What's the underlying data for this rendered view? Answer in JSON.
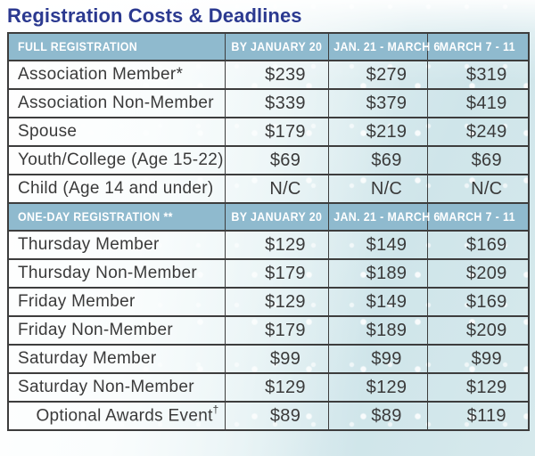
{
  "page": {
    "title": "Registration Costs & Deadlines"
  },
  "table": {
    "date_columns": [
      "BY JANUARY 20",
      "JAN. 21 - MARCH 6",
      "MARCH 7 - 11"
    ],
    "sections": [
      {
        "header": "FULL REGISTRATION",
        "rows": [
          {
            "label": "Association Member*",
            "values": [
              "$239",
              "$279",
              "$319"
            ]
          },
          {
            "label": "Association Non-Member",
            "values": [
              "$339",
              "$379",
              "$419"
            ]
          },
          {
            "label": "Spouse",
            "values": [
              "$179",
              "$219",
              "$249"
            ]
          },
          {
            "label": "Youth/College (Age 15-22)",
            "values": [
              "$69",
              "$69",
              "$69"
            ]
          },
          {
            "label": "Child (Age 14 and under)",
            "values": [
              "N/C",
              "N/C",
              "N/C"
            ]
          }
        ]
      },
      {
        "header": "ONE-DAY REGISTRATION **",
        "rows": [
          {
            "label": "Thursday Member",
            "values": [
              "$129",
              "$149",
              "$169"
            ]
          },
          {
            "label": "Thursday Non-Member",
            "values": [
              "$179",
              "$189",
              "$209"
            ]
          },
          {
            "label": "Friday Member",
            "values": [
              "$129",
              "$149",
              "$169"
            ]
          },
          {
            "label": "Friday Non-Member",
            "values": [
              "$179",
              "$189",
              "$209"
            ]
          },
          {
            "label": "Saturday Member",
            "values": [
              "$99",
              "$99",
              "$99"
            ]
          },
          {
            "label": "Saturday Non-Member",
            "values": [
              "$129",
              "$129",
              "$129"
            ]
          },
          {
            "label": "Optional Awards Event",
            "label_sup": "†",
            "label_align": "right",
            "values": [
              "$89",
              "$89",
              "$119"
            ]
          }
        ]
      }
    ]
  },
  "colors": {
    "title_text": "#2b3990",
    "header_bg": "#8fbace",
    "header_text": "#ffffff",
    "grid_border": "#3d3d3d",
    "cell_text": "#3a3a3a",
    "background_aqua": "#cfe5ea"
  }
}
